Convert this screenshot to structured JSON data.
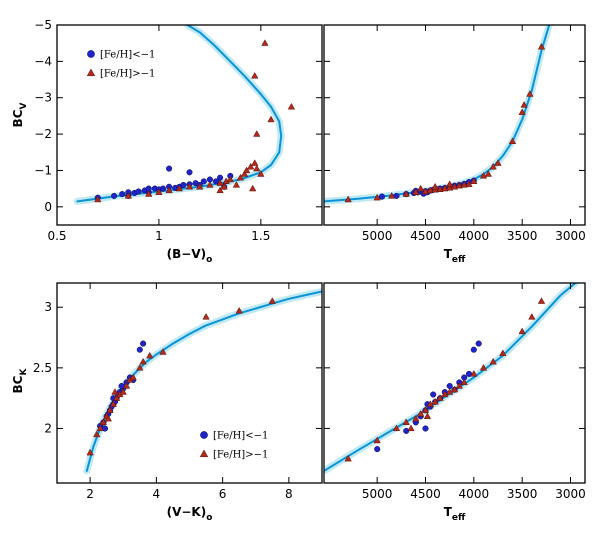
{
  "colors": {
    "curve_glow": "#bfe9f5",
    "curve_line": "#0a93d6",
    "metal_poor": "#1f24c8",
    "metal_rich": "#b22a1c"
  },
  "chart_data": [
    {
      "id": "bcv-bv",
      "type": "scatter",
      "xlabel": "(B−V)",
      "xlabel_sub": "o",
      "ylabel": "BC",
      "ylabel_sub": "V",
      "xlim": [
        0.5,
        1.8
      ],
      "ylim": [
        0.5,
        -5
      ],
      "xticks": [
        0.5,
        1,
        1.5
      ],
      "xtick_labels": [
        "0.5",
        "1",
        "1.5"
      ],
      "yticks": [
        0,
        -1,
        -2,
        -3,
        -4,
        -5
      ],
      "ytick_labels": [
        "0",
        "−1",
        "−2",
        "−3",
        "−4",
        "−5"
      ],
      "legend": {
        "position": "top-left",
        "items": [
          "[Fe/H]<−1",
          "[Fe/H]>−1"
        ]
      },
      "curve": {
        "x": [
          0.6,
          0.8,
          1.0,
          1.2,
          1.4,
          1.5,
          1.55,
          1.59,
          1.6,
          1.59,
          1.55,
          1.5,
          1.42,
          1.35,
          1.27,
          1.2,
          1.14
        ],
        "y": [
          -0.15,
          -0.3,
          -0.42,
          -0.55,
          -0.75,
          -0.95,
          -1.15,
          -1.5,
          -1.95,
          -2.35,
          -2.75,
          -3.1,
          -3.6,
          -4.0,
          -4.45,
          -4.8,
          -5.0
        ]
      },
      "series": [
        {
          "name": "[Fe/H]<−1",
          "marker": "circle",
          "x": [
            0.7,
            0.78,
            0.82,
            0.85,
            0.88,
            0.9,
            0.93,
            0.95,
            0.98,
            1.0,
            1.02,
            1.05,
            1.08,
            1.1,
            1.12,
            1.15,
            1.18,
            1.2,
            1.22,
            1.25,
            1.28,
            1.3,
            1.15,
            1.05,
            0.85,
            0.95,
            1.35,
            1.32
          ],
          "y": [
            -0.25,
            -0.3,
            -0.35,
            -0.4,
            -0.38,
            -0.42,
            -0.45,
            -0.4,
            -0.5,
            -0.48,
            -0.5,
            -0.55,
            -0.52,
            -0.55,
            -0.6,
            -0.62,
            -0.65,
            -0.6,
            -0.7,
            -0.75,
            -0.7,
            -0.8,
            -0.95,
            -1.05,
            -0.3,
            -0.5,
            -0.85,
            -0.55
          ]
        },
        {
          "name": "[Fe/H]>−1",
          "marker": "triangle",
          "x": [
            0.7,
            0.85,
            0.95,
            1.0,
            1.05,
            1.1,
            1.15,
            1.2,
            1.25,
            1.3,
            1.33,
            1.35,
            1.38,
            1.4,
            1.42,
            1.43,
            1.45,
            1.47,
            1.48,
            1.5,
            1.46,
            1.3,
            1.32,
            1.48,
            1.55,
            1.65,
            1.52,
            1.47
          ],
          "y": [
            -0.2,
            -0.3,
            -0.35,
            -0.4,
            -0.45,
            -0.5,
            -0.55,
            -0.55,
            -0.6,
            -0.65,
            -0.7,
            -0.75,
            -0.6,
            -0.8,
            -0.9,
            -1.0,
            -1.1,
            -1.2,
            -1.05,
            -0.9,
            -0.5,
            -0.45,
            -0.55,
            -2.0,
            -2.4,
            -2.75,
            -4.5,
            -3.6
          ]
        }
      ]
    },
    {
      "id": "bcv-teff",
      "type": "scatter",
      "xlabel": "T",
      "xlabel_sub": "eff",
      "ylabel": "",
      "ylabel_sub": "",
      "xlim": [
        5550,
        2850
      ],
      "ylim": [
        0.5,
        -5
      ],
      "xticks": [
        5000,
        4500,
        4000,
        3500,
        3000
      ],
      "xtick_labels": [
        "5000",
        "4500",
        "4000",
        "3500",
        "3000"
      ],
      "yticks": [
        0,
        -1,
        -2,
        -3,
        -4,
        -5
      ],
      "ytick_labels": [
        "",
        "",
        "",
        "",
        "",
        ""
      ],
      "curve": {
        "x": [
          5550,
          5200,
          4900,
          4600,
          4400,
          4200,
          4000,
          3900,
          3800,
          3700,
          3600,
          3500,
          3400,
          3300,
          3220
        ],
        "y": [
          -0.15,
          -0.22,
          -0.3,
          -0.4,
          -0.48,
          -0.58,
          -0.75,
          -0.9,
          -1.1,
          -1.4,
          -1.8,
          -2.4,
          -3.2,
          -4.3,
          -5.0
        ]
      },
      "series": [
        {
          "name": "[Fe/H]<−1",
          "marker": "circle",
          "x": [
            4950,
            4800,
            4700,
            4620,
            4580,
            4550,
            4500,
            4450,
            4420,
            4380,
            4350,
            4300,
            4250,
            4200,
            4150,
            4100,
            4050,
            4000,
            4520,
            4480,
            4600
          ],
          "y": [
            -0.28,
            -0.3,
            -0.35,
            -0.38,
            -0.4,
            -0.42,
            -0.43,
            -0.45,
            -0.47,
            -0.48,
            -0.5,
            -0.52,
            -0.55,
            -0.58,
            -0.6,
            -0.63,
            -0.68,
            -0.72,
            -0.36,
            -0.4,
            -0.44
          ]
        },
        {
          "name": "[Fe/H]>−1",
          "marker": "triangle",
          "x": [
            5300,
            5000,
            4850,
            4700,
            4600,
            4500,
            4450,
            4400,
            4350,
            4300,
            4250,
            4200,
            4150,
            4100,
            4050,
            4000,
            3900,
            3850,
            3800,
            3750,
            3600,
            3500,
            3480,
            3420,
            3300,
            4550,
            4400,
            4250
          ],
          "y": [
            -0.2,
            -0.25,
            -0.3,
            -0.35,
            -0.4,
            -0.42,
            -0.45,
            -0.47,
            -0.48,
            -0.5,
            -0.52,
            -0.55,
            -0.58,
            -0.6,
            -0.62,
            -0.7,
            -0.85,
            -0.9,
            -1.1,
            -1.2,
            -1.8,
            -2.6,
            -2.8,
            -3.1,
            -4.4,
            -0.5,
            -0.55,
            -0.62
          ]
        }
      ]
    },
    {
      "id": "bck-vk",
      "type": "scatter",
      "xlabel": "(V−K)",
      "xlabel_sub": "o",
      "ylabel": "BC",
      "ylabel_sub": "K",
      "xlim": [
        1,
        9
      ],
      "ylim": [
        1.55,
        3.2
      ],
      "xticks": [
        2,
        4,
        6,
        8
      ],
      "xtick_labels": [
        "2",
        "4",
        "6",
        "8"
      ],
      "yticks": [
        2,
        2.5,
        3
      ],
      "ytick_labels": [
        "2",
        "2.5",
        "3"
      ],
      "legend": {
        "position": "bottom-right",
        "items": [
          "[Fe/H]<−1",
          "[Fe/H]>−1"
        ]
      },
      "curve": {
        "x": [
          1.9,
          2.1,
          2.3,
          2.5,
          2.7,
          2.9,
          3.1,
          3.4,
          3.7,
          4.0,
          4.5,
          5.0,
          5.5,
          6.0,
          6.5,
          7.0,
          7.5,
          8.0,
          8.5,
          9.0
        ],
        "y": [
          1.65,
          1.85,
          2.0,
          2.12,
          2.22,
          2.31,
          2.38,
          2.47,
          2.55,
          2.61,
          2.7,
          2.78,
          2.85,
          2.9,
          2.95,
          2.99,
          3.03,
          3.07,
          3.1,
          3.13
        ]
      },
      "series": [
        {
          "name": "[Fe/H]<−1",
          "marker": "circle",
          "x": [
            2.3,
            2.4,
            2.5,
            2.55,
            2.6,
            2.65,
            2.7,
            2.75,
            2.8,
            2.85,
            2.9,
            3.0,
            3.1,
            3.2,
            3.5,
            3.6,
            2.45,
            2.7,
            2.95,
            3.3
          ],
          "y": [
            2.02,
            2.05,
            2.1,
            2.12,
            2.15,
            2.18,
            2.2,
            2.22,
            2.25,
            2.28,
            2.3,
            2.33,
            2.38,
            2.42,
            2.65,
            2.7,
            2.0,
            2.25,
            2.35,
            2.4
          ]
        },
        {
          "name": "[Fe/H]>−1",
          "marker": "triangle",
          "x": [
            2.0,
            2.2,
            2.3,
            2.4,
            2.5,
            2.6,
            2.7,
            2.8,
            2.9,
            3.0,
            3.1,
            3.2,
            3.3,
            3.5,
            3.6,
            3.8,
            4.2,
            5.5,
            6.5,
            7.5,
            2.55,
            2.75
          ],
          "y": [
            1.8,
            1.95,
            2.0,
            2.05,
            2.1,
            2.15,
            2.2,
            2.25,
            2.28,
            2.3,
            2.35,
            2.4,
            2.42,
            2.5,
            2.55,
            2.6,
            2.63,
            2.92,
            2.97,
            3.05,
            2.08,
            2.3
          ]
        }
      ]
    },
    {
      "id": "bck-teff",
      "type": "scatter",
      "xlabel": "T",
      "xlabel_sub": "eff",
      "ylabel": "",
      "ylabel_sub": "",
      "xlim": [
        5550,
        2850
      ],
      "ylim": [
        1.55,
        3.2
      ],
      "xticks": [
        5000,
        4500,
        4000,
        3500,
        3000
      ],
      "xtick_labels": [
        "5000",
        "4500",
        "4000",
        "3500",
        "3000"
      ],
      "yticks": [
        2,
        2.5,
        3
      ],
      "ytick_labels": [
        "",
        "",
        ""
      ],
      "curve": {
        "x": [
          5550,
          5200,
          4900,
          4600,
          4300,
          4000,
          3700,
          3400,
          3100,
          2950
        ],
        "y": [
          1.65,
          1.82,
          1.96,
          2.1,
          2.26,
          2.42,
          2.6,
          2.84,
          3.1,
          3.2
        ]
      },
      "series": [
        {
          "name": "[Fe/H]<−1",
          "marker": "circle",
          "x": [
            5000,
            4700,
            4600,
            4550,
            4500,
            4480,
            4450,
            4400,
            4350,
            4300,
            4250,
            4200,
            4150,
            4100,
            4050,
            4000,
            3950,
            4500,
            4420
          ],
          "y": [
            1.83,
            1.98,
            2.05,
            2.1,
            2.15,
            2.2,
            2.18,
            2.22,
            2.25,
            2.3,
            2.35,
            2.32,
            2.38,
            2.42,
            2.45,
            2.65,
            2.7,
            2.0,
            2.28
          ]
        },
        {
          "name": "[Fe/H]>−1",
          "marker": "triangle",
          "x": [
            5300,
            5000,
            4800,
            4700,
            4600,
            4550,
            4500,
            4450,
            4400,
            4350,
            4300,
            4250,
            4200,
            4150,
            4100,
            4000,
            3900,
            3800,
            3700,
            3500,
            3400,
            3300,
            4650,
            4480
          ],
          "y": [
            1.75,
            1.9,
            2.0,
            2.05,
            2.08,
            2.12,
            2.15,
            2.2,
            2.22,
            2.25,
            2.28,
            2.3,
            2.32,
            2.35,
            2.38,
            2.45,
            2.5,
            2.55,
            2.62,
            2.8,
            2.92,
            3.05,
            2.0,
            2.1
          ]
        }
      ]
    }
  ]
}
